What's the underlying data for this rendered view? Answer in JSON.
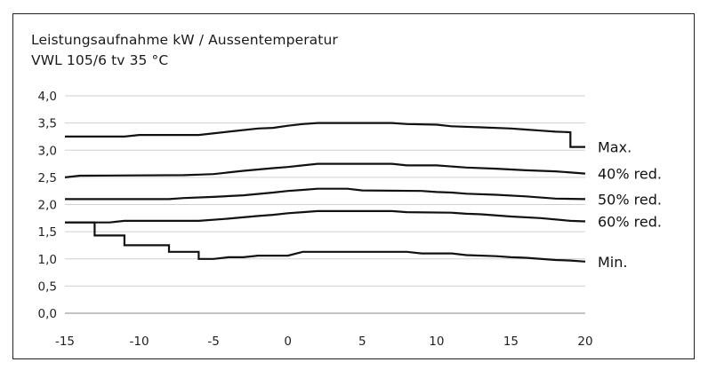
{
  "chart_data": {
    "type": "line",
    "title": "Leistungsaufnahme kW / Aussentemperatur",
    "subtitle": "VWL 105/6 tv 35 °C",
    "xlabel": "",
    "ylabel": "",
    "xlim": [
      -15,
      20
    ],
    "ylim": [
      0,
      4
    ],
    "grid": true,
    "legend": "right-labels",
    "x_ticks": [
      "-15",
      "-10",
      "-5",
      "0",
      "5",
      "10",
      "15",
      "20"
    ],
    "y_ticks": [
      "0,0",
      "0,5",
      "1,0",
      "1,5",
      "2,0",
      "2,5",
      "3,0",
      "3,5",
      "4,0"
    ],
    "series": [
      {
        "name": "Max.",
        "points": [
          [
            -15,
            3.25
          ],
          [
            -11,
            3.25
          ],
          [
            -10,
            3.28
          ],
          [
            -6,
            3.28
          ],
          [
            -4,
            3.34
          ],
          [
            -2,
            3.4
          ],
          [
            -1,
            3.41
          ],
          [
            0,
            3.45
          ],
          [
            1,
            3.48
          ],
          [
            2,
            3.5
          ],
          [
            7,
            3.5
          ],
          [
            8,
            3.48
          ],
          [
            10,
            3.47
          ],
          [
            11,
            3.44
          ],
          [
            13,
            3.42
          ],
          [
            15,
            3.4
          ],
          [
            16,
            3.38
          ],
          [
            17,
            3.36
          ],
          [
            18,
            3.34
          ],
          [
            19,
            3.33
          ],
          [
            19,
            3.06
          ],
          [
            20,
            3.06
          ]
        ]
      },
      {
        "name": "40% red.",
        "points": [
          [
            -15,
            2.5
          ],
          [
            -14,
            2.53
          ],
          [
            -7,
            2.54
          ],
          [
            -6,
            2.55
          ],
          [
            -5,
            2.56
          ],
          [
            -3,
            2.62
          ],
          [
            -1,
            2.67
          ],
          [
            0,
            2.69
          ],
          [
            1,
            2.72
          ],
          [
            2,
            2.75
          ],
          [
            7,
            2.75
          ],
          [
            8,
            2.72
          ],
          [
            10,
            2.72
          ],
          [
            12,
            2.68
          ],
          [
            14,
            2.66
          ],
          [
            16,
            2.63
          ],
          [
            18,
            2.61
          ],
          [
            20,
            2.57
          ]
        ]
      },
      {
        "name": "50% red.",
        "points": [
          [
            -15,
            2.1
          ],
          [
            -8,
            2.1
          ],
          [
            -7,
            2.12
          ],
          [
            -5,
            2.14
          ],
          [
            -3,
            2.17
          ],
          [
            -1,
            2.22
          ],
          [
            0,
            2.25
          ],
          [
            1,
            2.27
          ],
          [
            2,
            2.29
          ],
          [
            4,
            2.29
          ],
          [
            5,
            2.26
          ],
          [
            9,
            2.25
          ],
          [
            10,
            2.23
          ],
          [
            11,
            2.22
          ],
          [
            12,
            2.2
          ],
          [
            14,
            2.18
          ],
          [
            16,
            2.15
          ],
          [
            18,
            2.11
          ],
          [
            20,
            2.1
          ]
        ]
      },
      {
        "name": "60% red.",
        "points": [
          [
            -15,
            1.67
          ],
          [
            -12,
            1.67
          ],
          [
            -11,
            1.7
          ],
          [
            -6,
            1.7
          ],
          [
            -4,
            1.74
          ],
          [
            -2,
            1.79
          ],
          [
            -1,
            1.81
          ],
          [
            0,
            1.84
          ],
          [
            1,
            1.86
          ],
          [
            2,
            1.88
          ],
          [
            7,
            1.88
          ],
          [
            8,
            1.86
          ],
          [
            11,
            1.85
          ],
          [
            12,
            1.83
          ],
          [
            13,
            1.82
          ],
          [
            15,
            1.78
          ],
          [
            17,
            1.75
          ],
          [
            19,
            1.7
          ],
          [
            20,
            1.69
          ]
        ]
      },
      {
        "name": "Min.",
        "points": [
          [
            -15,
            1.67
          ],
          [
            -13,
            1.67
          ],
          [
            -13,
            1.43
          ],
          [
            -11,
            1.43
          ],
          [
            -11,
            1.25
          ],
          [
            -8,
            1.25
          ],
          [
            -8,
            1.13
          ],
          [
            -6,
            1.13
          ],
          [
            -6,
            1.0
          ],
          [
            -5,
            1.0
          ],
          [
            -4,
            1.03
          ],
          [
            -3,
            1.03
          ],
          [
            -2,
            1.06
          ],
          [
            0,
            1.06
          ],
          [
            1,
            1.13
          ],
          [
            8,
            1.13
          ],
          [
            9,
            1.1
          ],
          [
            11,
            1.1
          ],
          [
            12,
            1.07
          ],
          [
            14,
            1.05
          ],
          [
            15,
            1.03
          ],
          [
            16,
            1.02
          ],
          [
            18,
            0.98
          ],
          [
            19,
            0.97
          ],
          [
            20,
            0.95
          ]
        ]
      }
    ]
  }
}
